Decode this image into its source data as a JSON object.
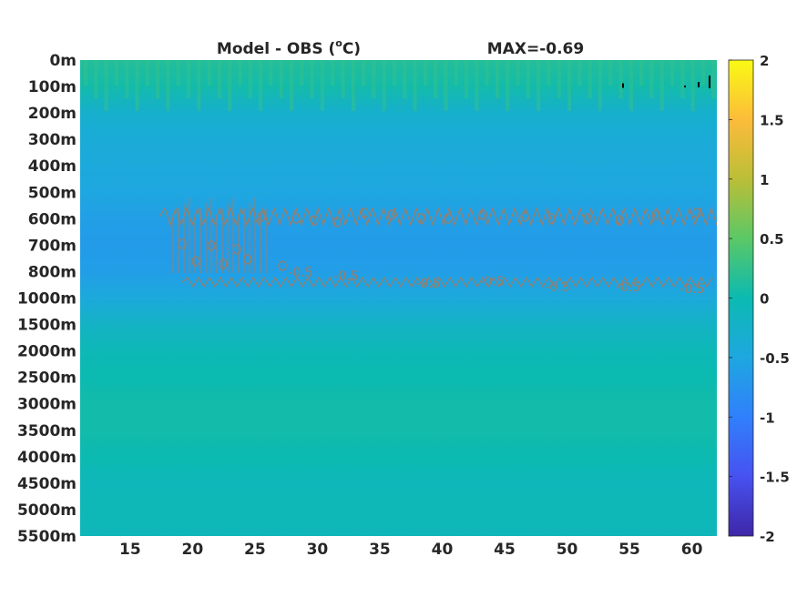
{
  "chart_data": {
    "type": "heatmap",
    "title": "Model - OBS (",
    "title_superscript": "o",
    "title_unit": "C)",
    "max_label": "MAX=-0.69",
    "xlabel": "",
    "ylabel": "",
    "xlim": [
      11,
      62
    ],
    "x_ticks": [
      "15",
      "20",
      "25",
      "30",
      "35",
      "40",
      "45",
      "50",
      "55",
      "60"
    ],
    "x_tick_values": [
      15,
      20,
      25,
      30,
      35,
      40,
      45,
      50,
      55,
      60
    ],
    "y_ticks": [
      "0m",
      "100m",
      "200m",
      "300m",
      "400m",
      "500m",
      "600m",
      "700m",
      "800m",
      "1000m",
      "1500m",
      "2000m",
      "2500m",
      "3000m",
      "3500m",
      "4000m",
      "4500m",
      "5000m",
      "5500m"
    ],
    "colorbar": {
      "limits": [
        -2,
        2
      ],
      "ticks": [
        "2",
        "1.5",
        "1",
        "0.5",
        "0",
        "-0.5",
        "-1",
        "-1.5",
        "-2"
      ],
      "tick_values": [
        2,
        1.5,
        1,
        0.5,
        0,
        -0.5,
        -1,
        -1.5,
        -2
      ],
      "colormap": "parula"
    },
    "depth_profile": [
      {
        "depth": "0m",
        "value": 0.15
      },
      {
        "depth": "100m",
        "value": 0.05
      },
      {
        "depth": "200m",
        "value": -0.3
      },
      {
        "depth": "300m",
        "value": -0.4
      },
      {
        "depth": "400m",
        "value": -0.45
      },
      {
        "depth": "500m",
        "value": -0.5
      },
      {
        "depth": "600m",
        "value": -0.6
      },
      {
        "depth": "700m",
        "value": -0.65
      },
      {
        "depth": "800m",
        "value": -0.62
      },
      {
        "depth": "1000m",
        "value": -0.45
      },
      {
        "depth": "1500m",
        "value": -0.2
      },
      {
        "depth": "2000m",
        "value": -0.05
      },
      {
        "depth": "2500m",
        "value": 0.0
      },
      {
        "depth": "3000m",
        "value": 0.05
      },
      {
        "depth": "3500m",
        "value": 0.05
      },
      {
        "depth": "4000m",
        "value": 0.0
      },
      {
        "depth": "4500m",
        "value": -0.08
      },
      {
        "depth": "5000m",
        "value": -0.05
      },
      {
        "depth": "5500m",
        "value": -0.1
      }
    ],
    "contour_label": "-0.5",
    "contour_color": "#9a7f6a"
  }
}
